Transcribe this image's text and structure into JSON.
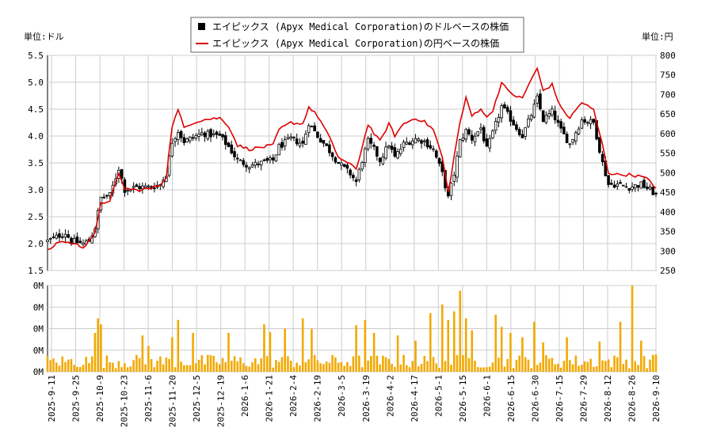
{
  "chart_data": {
    "type": "candlestick",
    "legend": {
      "position": "top-center",
      "entries": [
        {
          "label": "エイピックス (Apyx Medical Corporation)のドルベースの株価",
          "color": "#000000",
          "marker": "square"
        },
        {
          "label": "エイピックス (Apyx Medical Corporation)の円ベースの株価",
          "color": "#dd0000",
          "marker": "line"
        }
      ]
    },
    "left_axis_unit": "単位:ドル",
    "right_axis_unit": "単位:円",
    "y_left": {
      "min": 1.5,
      "max": 5.5,
      "ticks": [
        "1.5",
        "2.0",
        "2.5",
        "3.0",
        "3.5",
        "4.0",
        "4.5",
        "5.0",
        "5.5"
      ]
    },
    "y_right": {
      "min": 250,
      "max": 800,
      "ticks": [
        "250",
        "300",
        "350",
        "400",
        "450",
        "500",
        "550",
        "600",
        "650",
        "700",
        "750",
        "800"
      ]
    },
    "volume_axis": {
      "ticks": [
        "0M",
        "0M",
        "0M",
        "0M",
        "0M"
      ]
    },
    "x_ticks": [
      "2025-9-11",
      "2025-9-25",
      "2025-10-9",
      "2025-10-23",
      "2025-11-6",
      "2025-11-20",
      "2025-12-5",
      "2025-12-19",
      "2026-1-6",
      "2026-1-21",
      "2026-2-4",
      "2026-2-19",
      "2026-3-5",
      "2026-3-19",
      "2026-4-2",
      "2026-4-17",
      "2026-5-1",
      "2026-5-15",
      "2026-6-1",
      "2026-6-15",
      "2026-6-30",
      "2026-7-15",
      "2026-7-29",
      "2026-8-12",
      "2026-8-26",
      "2026-9-10"
    ],
    "usd_close_keypoints": [
      [
        0,
        2.05
      ],
      [
        6,
        2.2
      ],
      [
        8,
        2.05
      ],
      [
        12,
        2.0
      ],
      [
        14,
        2.05
      ],
      [
        16,
        2.3
      ],
      [
        18,
        2.85
      ],
      [
        21,
        2.9
      ],
      [
        24,
        3.4
      ],
      [
        26,
        3.0
      ],
      [
        30,
        3.05
      ],
      [
        35,
        3.05
      ],
      [
        38,
        3.1
      ],
      [
        40,
        3.3
      ],
      [
        42,
        3.9
      ],
      [
        44,
        4.1
      ],
      [
        46,
        3.9
      ],
      [
        48,
        3.95
      ],
      [
        52,
        4.05
      ],
      [
        58,
        4.0
      ],
      [
        61,
        3.8
      ],
      [
        64,
        3.55
      ],
      [
        68,
        3.45
      ],
      [
        72,
        3.5
      ],
      [
        76,
        3.55
      ],
      [
        78,
        3.8
      ],
      [
        82,
        3.95
      ],
      [
        86,
        3.85
      ],
      [
        88,
        4.25
      ],
      [
        91,
        4.0
      ],
      [
        94,
        3.8
      ],
      [
        98,
        3.5
      ],
      [
        102,
        3.3
      ],
      [
        104,
        3.15
      ],
      [
        106,
        3.55
      ],
      [
        108,
        3.9
      ],
      [
        110,
        3.75
      ],
      [
        112,
        3.55
      ],
      [
        115,
        3.85
      ],
      [
        117,
        3.6
      ],
      [
        120,
        3.85
      ],
      [
        124,
        3.95
      ],
      [
        127,
        3.9
      ],
      [
        130,
        3.75
      ],
      [
        133,
        3.3
      ],
      [
        135,
        2.85
      ],
      [
        137,
        3.3
      ],
      [
        139,
        3.9
      ],
      [
        141,
        4.1
      ],
      [
        143,
        3.95
      ],
      [
        146,
        4.15
      ],
      [
        148,
        3.75
      ],
      [
        150,
        4.05
      ],
      [
        153,
        4.55
      ],
      [
        155,
        4.4
      ],
      [
        158,
        4.15
      ],
      [
        160,
        4.0
      ],
      [
        163,
        4.4
      ],
      [
        165,
        4.7
      ],
      [
        167,
        4.3
      ],
      [
        170,
        4.45
      ],
      [
        173,
        4.1
      ],
      [
        176,
        3.85
      ],
      [
        180,
        4.3
      ],
      [
        184,
        4.25
      ],
      [
        187,
        3.5
      ],
      [
        189,
        3.1
      ],
      [
        192,
        3.1
      ],
      [
        196,
        3.05
      ],
      [
        200,
        3.1
      ],
      [
        203,
        3.0
      ],
      [
        205,
        2.9
      ]
    ],
    "jpy_close_keypoints": [
      [
        0,
        300
      ],
      [
        4,
        325
      ],
      [
        8,
        320
      ],
      [
        12,
        310
      ],
      [
        16,
        345
      ],
      [
        18,
        420
      ],
      [
        21,
        430
      ],
      [
        24,
        495
      ],
      [
        26,
        460
      ],
      [
        30,
        455
      ],
      [
        35,
        460
      ],
      [
        38,
        470
      ],
      [
        40,
        490
      ],
      [
        42,
        620
      ],
      [
        44,
        660
      ],
      [
        46,
        615
      ],
      [
        48,
        625
      ],
      [
        52,
        635
      ],
      [
        58,
        640
      ],
      [
        61,
        620
      ],
      [
        64,
        570
      ],
      [
        68,
        560
      ],
      [
        72,
        565
      ],
      [
        76,
        570
      ],
      [
        78,
        610
      ],
      [
        82,
        628
      ],
      [
        86,
        625
      ],
      [
        88,
        668
      ],
      [
        91,
        645
      ],
      [
        94,
        605
      ],
      [
        98,
        540
      ],
      [
        102,
        520
      ],
      [
        104,
        510
      ],
      [
        106,
        565
      ],
      [
        108,
        625
      ],
      [
        110,
        600
      ],
      [
        112,
        580
      ],
      [
        115,
        625
      ],
      [
        117,
        595
      ],
      [
        120,
        625
      ],
      [
        124,
        640
      ],
      [
        127,
        630
      ],
      [
        130,
        610
      ],
      [
        133,
        540
      ],
      [
        135,
        450
      ],
      [
        137,
        540
      ],
      [
        139,
        630
      ],
      [
        141,
        690
      ],
      [
        143,
        645
      ],
      [
        146,
        665
      ],
      [
        148,
        640
      ],
      [
        150,
        660
      ],
      [
        153,
        730
      ],
      [
        155,
        710
      ],
      [
        158,
        695
      ],
      [
        160,
        690
      ],
      [
        163,
        740
      ],
      [
        165,
        765
      ],
      [
        167,
        710
      ],
      [
        170,
        725
      ],
      [
        173,
        665
      ],
      [
        176,
        640
      ],
      [
        180,
        680
      ],
      [
        184,
        660
      ],
      [
        187,
        570
      ],
      [
        189,
        500
      ],
      [
        192,
        495
      ],
      [
        196,
        495
      ],
      [
        200,
        490
      ],
      [
        203,
        480
      ],
      [
        205,
        460
      ]
    ],
    "volume_spikes": [
      [
        16,
        0.45
      ],
      [
        17,
        0.62
      ],
      [
        18,
        0.55
      ],
      [
        32,
        0.42
      ],
      [
        34,
        0.3
      ],
      [
        42,
        0.4
      ],
      [
        44,
        0.6
      ],
      [
        49,
        0.45
      ],
      [
        61,
        0.45
      ],
      [
        73,
        0.55
      ],
      [
        75,
        0.46
      ],
      [
        80,
        0.5
      ],
      [
        86,
        0.62
      ],
      [
        89,
        0.5
      ],
      [
        104,
        0.54
      ],
      [
        107,
        0.6
      ],
      [
        110,
        0.45
      ],
      [
        118,
        0.42
      ],
      [
        124,
        0.36
      ],
      [
        129,
        0.68
      ],
      [
        133,
        0.78
      ],
      [
        135,
        0.6
      ],
      [
        137,
        0.7
      ],
      [
        139,
        0.94
      ],
      [
        141,
        0.62
      ],
      [
        143,
        0.48
      ],
      [
        151,
        0.66
      ],
      [
        153,
        0.52
      ],
      [
        156,
        0.45
      ],
      [
        160,
        0.4
      ],
      [
        164,
        0.58
      ],
      [
        167,
        0.34
      ],
      [
        175,
        0.4
      ],
      [
        186,
        0.35
      ],
      [
        193,
        0.58
      ],
      [
        197,
        1.0
      ],
      [
        200,
        0.36
      ],
      [
        205,
        0.2
      ]
    ]
  }
}
